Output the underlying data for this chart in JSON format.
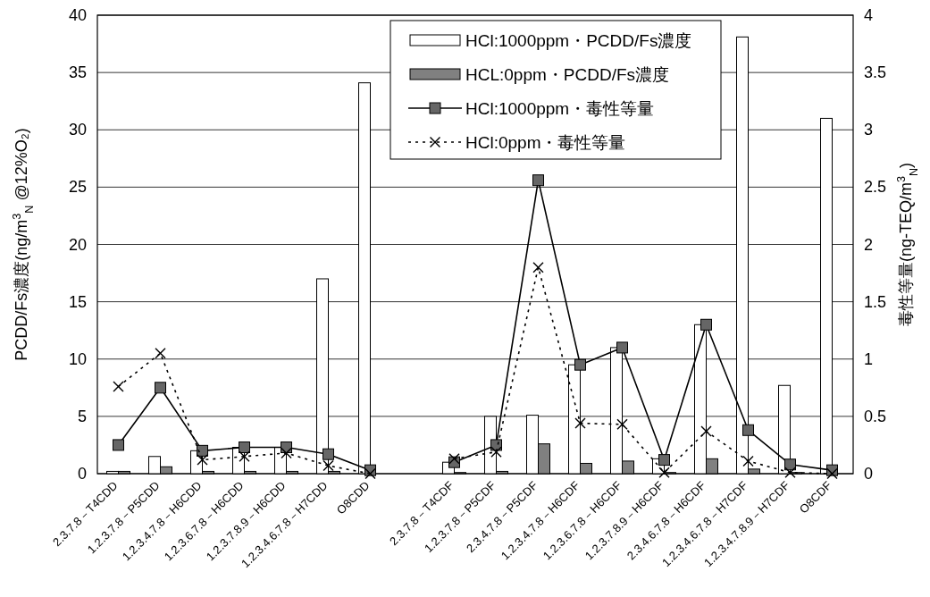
{
  "chart_data": {
    "type": "bar",
    "categories": [
      "2.3.7.8－T4CDD",
      "1.2.3.7.8－P5CDD",
      "1.2.3.4.7.8－H6CDD",
      "1.2.3.6.7.8－H6CDD",
      "1.2.3.7.8.9－H6CDD",
      "1.2.3.4.6.7.8－H7CDD",
      "O8CDD",
      null,
      "2.3.7.8－T4CDF",
      "1.2.3.7.8－P5CDF",
      "2.3.4.7.8－P5CDF",
      "1.2.3.4.7.8－H6CDF",
      "1.2.3.6.7.8－H6CDF",
      "1.2.3.7.8.9－H6CDF",
      "2.3.4.6.7.8－H6CDF",
      "1.2.3.4.6.7.8－H7CDF",
      "1.2.3.4.7.8.9－H7CDF",
      "O8CDF"
    ],
    "series": [
      {
        "name": "HCl:1000ppm・PCDD/Fs濃度",
        "color": "#ffffff",
        "values": [
          0.2,
          1.5,
          2.0,
          2.3,
          2.3,
          17.0,
          34.1,
          null,
          1.0,
          5.0,
          5.1,
          9.5,
          11.0,
          1.3,
          13.0,
          38.1,
          7.7,
          31.0
        ]
      },
      {
        "name": "HCL:0ppm・PCDD/Fs濃度",
        "color": "#808080",
        "values": [
          0.2,
          0.6,
          0.2,
          0.2,
          0.2,
          0.2,
          null,
          null,
          0.1,
          0.2,
          2.6,
          0.9,
          1.1,
          0.1,
          1.3,
          0.4,
          0.1,
          null
        ]
      },
      {
        "name": "HCl:1000ppm・毒性等量",
        "type": "line",
        "axis": "y2",
        "color": "#000000",
        "marker": "square",
        "line_style": "solid",
        "values": [
          0.25,
          0.75,
          0.2,
          0.23,
          0.23,
          0.17,
          0.03,
          null,
          0.1,
          0.25,
          2.56,
          0.95,
          1.1,
          0.12,
          1.3,
          0.38,
          0.08,
          0.03
        ]
      },
      {
        "name": "HCl:0ppm・毒性等量",
        "type": "line",
        "axis": "y2",
        "color": "#000000",
        "marker": "cross",
        "line_style": "dotted",
        "values": [
          0.76,
          1.05,
          0.12,
          0.15,
          0.18,
          0.07,
          0.0,
          null,
          0.13,
          0.19,
          1.8,
          0.44,
          0.43,
          0.01,
          0.37,
          0.11,
          0.01,
          0.0
        ]
      }
    ],
    "ylabel": "PCDD/Fs濃度(ng/m$^{3}$$_{N}$ @12%O₂)",
    "y2label": "毒性等量(ng-TEQ/m$^{3}$$_{N}$)",
    "ylim": [
      0,
      40
    ],
    "yticks": [
      0,
      5,
      10,
      15,
      20,
      25,
      30,
      35,
      40
    ],
    "y2lim": [
      0,
      4
    ],
    "y2ticks": [
      0,
      0.5,
      1,
      1.5,
      2,
      2.5,
      3,
      3.5,
      4
    ],
    "grid": "y",
    "legend": "top"
  }
}
